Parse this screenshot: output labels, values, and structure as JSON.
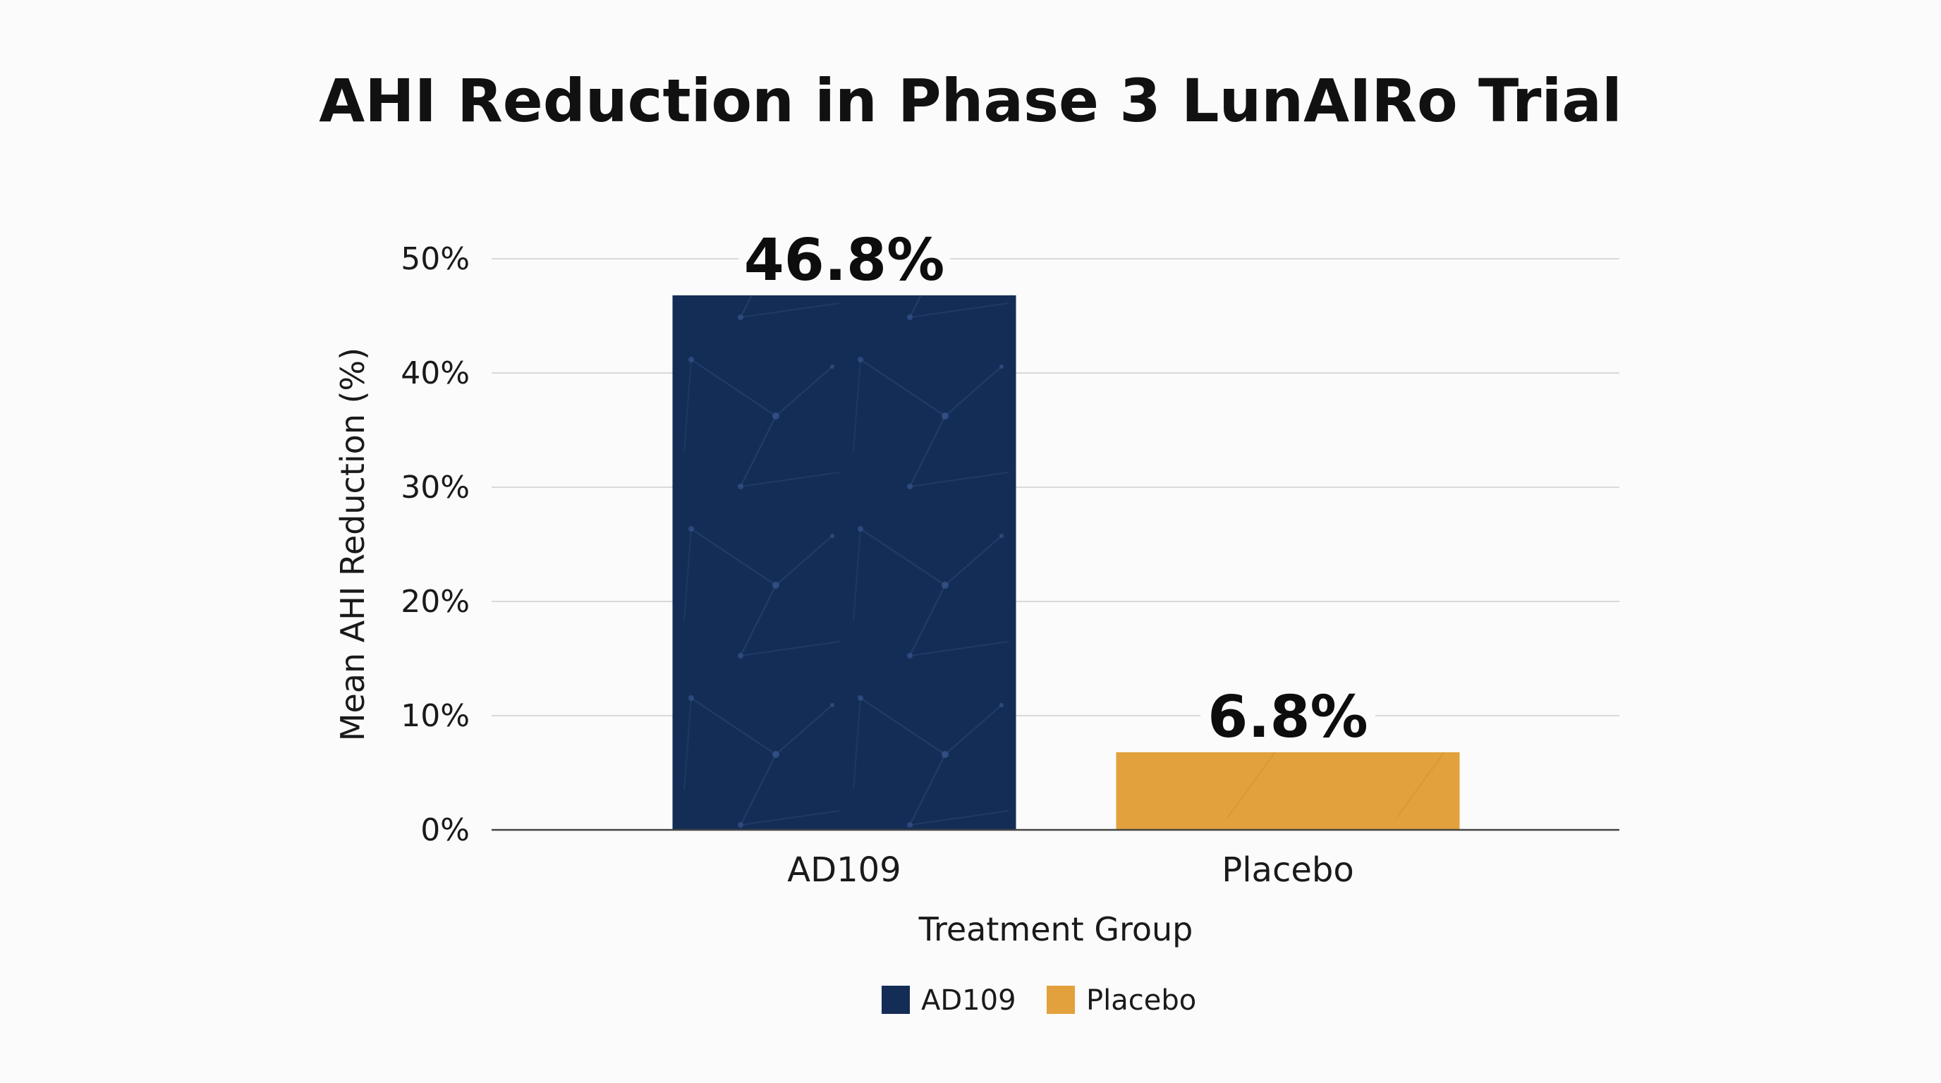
{
  "chart_data": {
    "type": "bar",
    "title": "AHI Reduction in Phase 3 LunAIRo Trial",
    "xlabel": "Treatment Group",
    "ylabel": "Mean AHI Reduction (%)",
    "categories": [
      "AD109",
      "Placebo"
    ],
    "values": [
      46.8,
      6.8
    ],
    "data_labels": [
      "46.8%",
      "6.8%"
    ],
    "colors": [
      "#142d56",
      "#e2a13c"
    ],
    "ylim": [
      0,
      50
    ],
    "yticks": [
      0,
      10,
      20,
      30,
      40,
      50
    ],
    "ytick_labels": [
      "0%",
      "10%",
      "20%",
      "30%",
      "40%",
      "50%"
    ],
    "grid": true,
    "legend": {
      "placement": "bottom-center",
      "entries": [
        {
          "label": "AD109",
          "color": "#142d56"
        },
        {
          "label": "Placebo",
          "color": "#e2a13c"
        }
      ]
    }
  }
}
